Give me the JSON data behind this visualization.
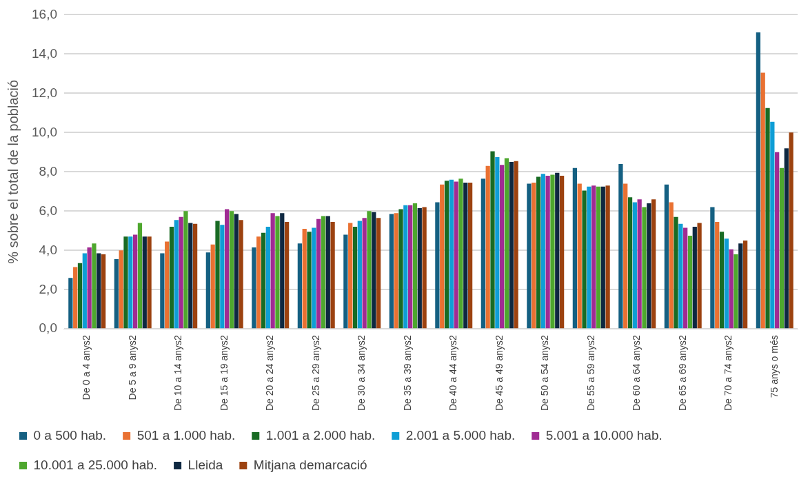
{
  "chart_data": {
    "type": "bar",
    "ylabel": "% sobre el total de la població",
    "categories": [
      "De 0 a 4 anys2",
      "De 5 a 9 anys2",
      "De 10 a 14 anys2",
      "De 15 a 19 anys2",
      "De 20 a 24 anys2",
      "De 25 a 29 anys2",
      "De 30 a 34 anys2",
      "De 35 a 39 anys2",
      "De 40 a 44 anys2",
      "De 45 a 49 anys2",
      "De 50 a 54 anys2",
      "De 55 a 59 anys2",
      "De 60 a 64 anys2",
      "De 65 a 69 anys2",
      "De 70 a 74 anys2",
      "75 anys o més"
    ],
    "series": [
      {
        "name": "0 a 500 hab.",
        "color": "#156082",
        "values": [
          2.6,
          3.55,
          3.85,
          3.9,
          4.15,
          4.35,
          4.8,
          5.85,
          6.45,
          7.65,
          7.4,
          8.2,
          8.4,
          7.35,
          6.2,
          15.1
        ]
      },
      {
        "name": "501 a 1.000 hab.",
        "color": "#e97132",
        "values": [
          3.15,
          4.0,
          4.45,
          4.3,
          4.7,
          5.1,
          5.4,
          5.9,
          7.35,
          8.3,
          7.45,
          7.4,
          7.4,
          6.45,
          5.45,
          13.05
        ]
      },
      {
        "name": "1.001 a 2.000 hab.",
        "color": "#196b24",
        "values": [
          3.35,
          4.7,
          5.2,
          5.5,
          4.9,
          4.95,
          5.2,
          6.1,
          7.55,
          9.05,
          7.75,
          7.05,
          6.7,
          5.7,
          4.95,
          11.25
        ]
      },
      {
        "name": "2.001 a 5.000 hab.",
        "color": "#0f9ed5",
        "values": [
          3.85,
          4.7,
          5.55,
          5.3,
          5.2,
          5.15,
          5.5,
          6.3,
          7.6,
          8.75,
          7.9,
          7.25,
          6.45,
          5.35,
          4.6,
          10.55
        ]
      },
      {
        "name": "5.001 a 10.000 hab.",
        "color": "#a02b93",
        "values": [
          4.15,
          4.8,
          5.7,
          6.1,
          5.9,
          5.6,
          5.65,
          6.3,
          7.5,
          8.35,
          7.8,
          7.3,
          6.6,
          5.15,
          4.05,
          9.0
        ]
      },
      {
        "name": "10.001 a 25.000 hab.",
        "color": "#4ea72e",
        "values": [
          4.35,
          5.4,
          6.0,
          6.0,
          5.75,
          5.75,
          6.0,
          6.4,
          7.65,
          8.7,
          7.85,
          7.25,
          6.2,
          4.75,
          3.8,
          8.2
        ]
      },
      {
        "name": "Lleida",
        "color": "#0e2841",
        "values": [
          3.85,
          4.7,
          5.4,
          5.85,
          5.9,
          5.75,
          5.95,
          6.15,
          7.45,
          8.5,
          7.95,
          7.25,
          6.4,
          5.2,
          4.35,
          9.2
        ]
      },
      {
        "name": "Mitjana demarcació",
        "color": "#9c4210",
        "values": [
          3.8,
          4.7,
          5.35,
          5.55,
          5.45,
          5.45,
          5.65,
          6.2,
          7.45,
          8.55,
          7.8,
          7.3,
          6.6,
          5.4,
          4.5,
          10.0
        ]
      }
    ],
    "ylim": [
      0,
      16
    ],
    "yticks": [
      {
        "value": 0,
        "label": "0,0"
      },
      {
        "value": 2,
        "label": "2,0"
      },
      {
        "value": 4,
        "label": "4,0"
      },
      {
        "value": 6,
        "label": "6,0"
      },
      {
        "value": 8,
        "label": "8,0"
      },
      {
        "value": 10,
        "label": "10,0"
      },
      {
        "value": 12,
        "label": "12,0"
      },
      {
        "value": 14,
        "label": "14,0"
      },
      {
        "value": 16,
        "label": "16,0"
      }
    ],
    "grid": "y",
    "legend": "bottom"
  }
}
